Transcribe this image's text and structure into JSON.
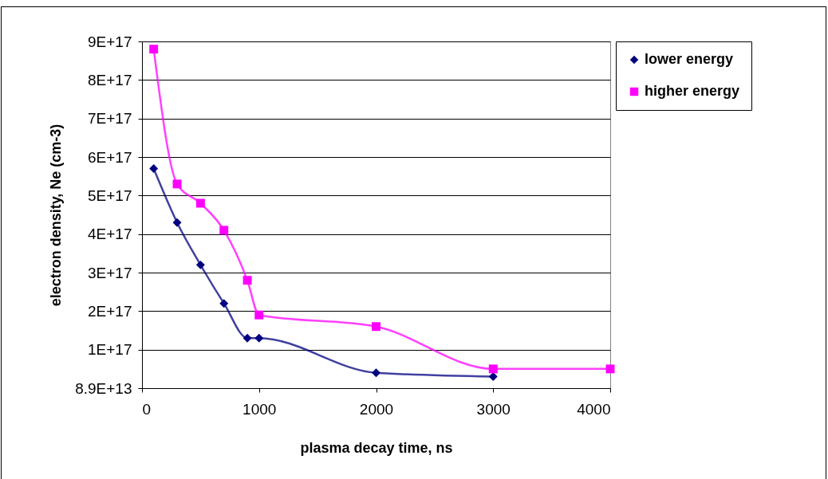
{
  "chart_data": {
    "type": "line",
    "xlabel": "plasma decay time, ns",
    "ylabel": "electron density, Ne (cm-3)",
    "x": [
      100,
      300,
      500,
      700,
      900,
      1000,
      2000,
      3000,
      4000
    ],
    "series": [
      {
        "name": "lower energy",
        "color": "#000080",
        "marker": "diamond",
        "values": [
          5.7e+17,
          4.3e+17,
          3.2e+17,
          2.2e+17,
          1.3e+17,
          1.3e+17,
          4e+16,
          3e+16,
          null
        ]
      },
      {
        "name": "higher energy",
        "color": "#ff00ff",
        "marker": "square",
        "values": [
          8.8e+17,
          5.3e+17,
          4.8e+17,
          4.1e+17,
          2.8e+17,
          1.9e+17,
          1.6e+17,
          5e+16,
          5e+16
        ]
      }
    ],
    "xlim": [
      0,
      4000
    ],
    "xticks": [
      0,
      1000,
      2000,
      3000,
      4000
    ],
    "ylim": [
      89000000000000,
      9e+17
    ],
    "yticks": [
      {
        "value": 89000000000000,
        "label": "8.9E+13"
      },
      {
        "value": 1e+17,
        "label": "1E+17"
      },
      {
        "value": 2e+17,
        "label": "2E+17"
      },
      {
        "value": 3e+17,
        "label": "3E+17"
      },
      {
        "value": 4e+17,
        "label": "4E+17"
      },
      {
        "value": 5e+17,
        "label": "5E+17"
      },
      {
        "value": 6e+17,
        "label": "6E+17"
      },
      {
        "value": 7e+17,
        "label": "7E+17"
      },
      {
        "value": 8e+17,
        "label": "8E+17"
      },
      {
        "value": 9e+17,
        "label": "9E+17"
      }
    ],
    "grid": "y",
    "legend": "right",
    "line_style": "solid"
  }
}
